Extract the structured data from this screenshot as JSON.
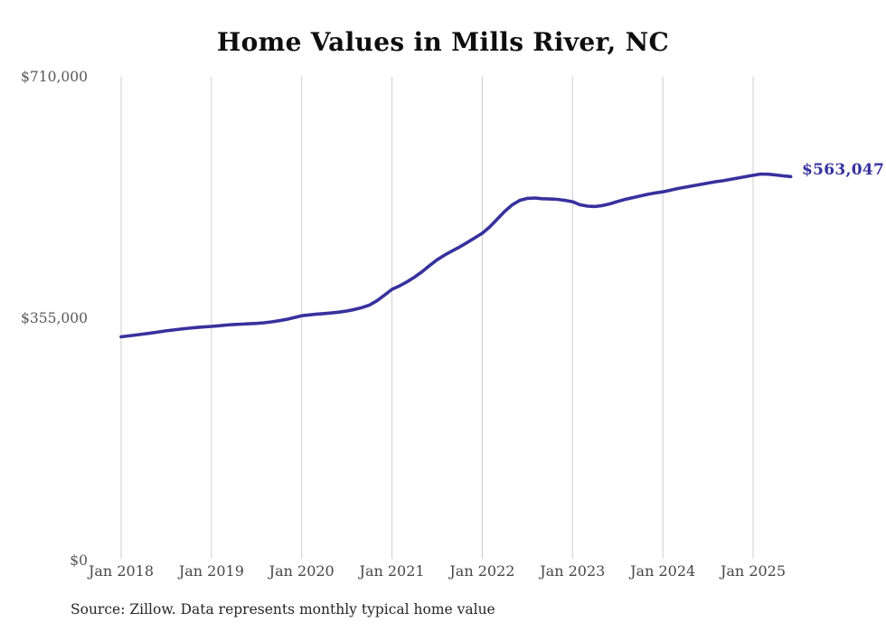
{
  "source_note": "Source: Zillow. Data represents monthly typical home value",
  "chart_data": {
    "type": "line",
    "title": "Home Values in Mills River, NC",
    "series_name": "Typical home value (USD)",
    "frequency": "monthly",
    "x_start": "Jan 2018",
    "x_end": "Jun 2025",
    "x_ticks": [
      "Jan 2018",
      "Jan 2019",
      "Jan 2020",
      "Jan 2021",
      "Jan 2022",
      "Jan 2023",
      "Jan 2024",
      "Jan 2025"
    ],
    "y_ticks": [
      "$710,000",
      "$355,000",
      "$0"
    ],
    "ylim": [
      0,
      710000
    ],
    "grid": "vertical-only",
    "legend": "none",
    "end_label": "$563,047",
    "end_value": 563047,
    "line_color": "#37319e",
    "grid_color": "#cdcdcd",
    "values": [
      327000,
      328300,
      329700,
      331100,
      332600,
      334200,
      335800,
      337200,
      338500,
      339700,
      340700,
      341500,
      342300,
      343300,
      344300,
      345100,
      345700,
      346200,
      346800,
      347700,
      349000,
      350700,
      352700,
      355200,
      358000,
      359300,
      360400,
      361300,
      362200,
      363400,
      365000,
      367200,
      370100,
      373800,
      380000,
      388500,
      397000,
      402000,
      408000,
      415000,
      423000,
      432000,
      440500,
      447500,
      453500,
      459500,
      466000,
      472800,
      479500,
      489000,
      500500,
      512000,
      521500,
      528000,
      531000,
      531500,
      530500,
      530000,
      529500,
      528000,
      526000,
      521500,
      519500,
      519000,
      520500,
      523000,
      526500,
      529500,
      532000,
      534500,
      537000,
      539000,
      540500,
      543000,
      545500,
      547500,
      549500,
      551500,
      553500,
      555500,
      557000,
      559000,
      561000,
      563000,
      565000,
      566800,
      566500,
      565500,
      564200,
      563047
    ]
  }
}
